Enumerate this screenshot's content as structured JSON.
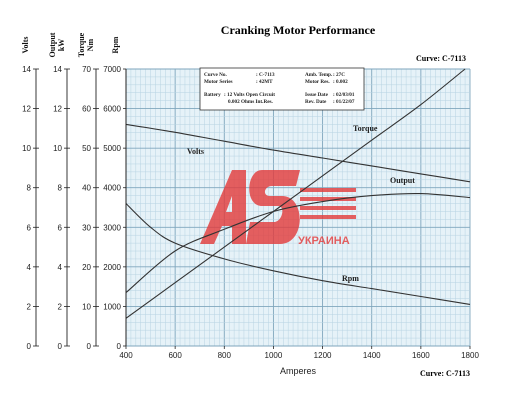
{
  "chart_data": {
    "type": "line",
    "title": "Cranking Motor Performance",
    "curve_label_top": "Curve: C-7113",
    "curve_label_bottom": "Curve: C-7113",
    "xlabel": "Amperes",
    "xlim": [
      400,
      1800
    ],
    "x_ticks": [
      400,
      600,
      800,
      1000,
      1200,
      1400,
      1600,
      1800
    ],
    "grid": true,
    "y_axes": [
      {
        "label": "Volts",
        "lim": [
          0,
          14
        ],
        "ticks": [
          0,
          2,
          4,
          6,
          8,
          10,
          12,
          14
        ]
      },
      {
        "label": "Output kW",
        "lim": [
          0,
          14
        ],
        "ticks": [
          0,
          2,
          4,
          6,
          8,
          10,
          12,
          14
        ]
      },
      {
        "label": "Torque Nm",
        "lim": [
          0,
          70
        ],
        "ticks": [
          0,
          10,
          20,
          30,
          40,
          50,
          60,
          70
        ]
      },
      {
        "label": "Rpm",
        "lim": [
          0,
          7000
        ],
        "ticks": [
          0,
          1000,
          2000,
          3000,
          4000,
          5000,
          6000,
          7000
        ]
      }
    ],
    "series": [
      {
        "name": "Volts",
        "axis": "Volts",
        "x": [
          400,
          600,
          800,
          1000,
          1200,
          1400,
          1600,
          1800
        ],
        "y": [
          11.2,
          10.8,
          10.35,
          9.9,
          9.5,
          9.1,
          8.7,
          8.3
        ]
      },
      {
        "name": "Torque",
        "axis": "Torque Nm",
        "x": [
          400,
          600,
          800,
          1000,
          1200,
          1400,
          1600,
          1780
        ],
        "y": [
          7,
          16,
          25,
          34,
          43,
          52,
          61,
          70
        ]
      },
      {
        "name": "Output",
        "axis": "Output kW",
        "x": [
          400,
          600,
          800,
          1000,
          1200,
          1400,
          1600,
          1800
        ],
        "y": [
          2.7,
          4.8,
          5.9,
          6.8,
          7.3,
          7.6,
          7.7,
          7.5
        ]
      },
      {
        "name": "Rpm",
        "axis": "Rpm",
        "x": [
          400,
          500,
          600,
          800,
          1000,
          1200,
          1400,
          1600,
          1800
        ],
        "y": [
          3600,
          3000,
          2600,
          2200,
          1900,
          1650,
          1450,
          1250,
          1050
        ]
      }
    ]
  },
  "info_box": {
    "curve_no_label": "Curve No.",
    "curve_no": ": C-7113",
    "motor_series_label": "Motor Series",
    "motor_series": ": 42MT",
    "amb_temp_label": "Amb. Temp.",
    "amb_temp": ": 27C",
    "motor_res_label": "Motor Res.",
    "motor_res": ": 0.002",
    "battery_label": "Battery",
    "battery": ": 12 Volts Open Circuit",
    "battery_res": "0.002 Ohms Int.Res.",
    "issue_date_label": "Issue Date",
    "issue_date": ": 02/03/01",
    "rev_date_label": "Rev. Date",
    "rev_date": ": 01/22/07"
  },
  "watermark": {
    "text": "УКРАИНА",
    "color": "#e33a3a"
  }
}
